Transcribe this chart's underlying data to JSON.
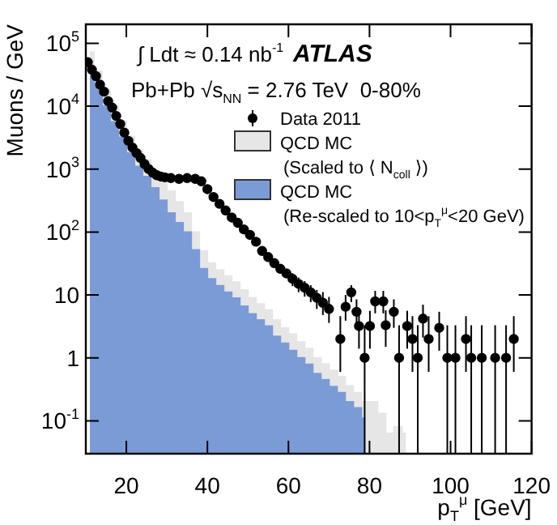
{
  "chart_data": {
    "type": "area",
    "xlabel": "p$_{T}$$^{μ}$ [GeV]",
    "ylabel": "Muons / GeV",
    "log": "y",
    "legend": "top right",
    "xlim": [
      10,
      120
    ],
    "xticks": [
      20,
      40,
      60,
      80,
      100,
      120
    ],
    "ylim": [
      0.03,
      200000
    ],
    "yticks": [
      {
        "value": 0.1,
        "label": "10$^{-1}$"
      },
      1,
      10,
      {
        "value": 100,
        "label": "10$^{2}$"
      },
      {
        "value": 1000,
        "label": "10$^{3}$"
      },
      {
        "value": 10000,
        "label": "10$^{4}$"
      },
      {
        "value": 100000,
        "label": "10$^{5}$"
      }
    ],
    "annotations": [
      "∫ Ldt ≈ 0.14 nb$^{-1}$",
      "ATLAS",
      "Pb+Pb √s$_{NN}$ = 2.76 TeV  0-80%"
    ],
    "series": [
      {
        "type": "scatter",
        "name": "Data 2011",
        "color": "#000000",
        "marker": "circle",
        "x": [
          10.5,
          11.5,
          12.5,
          13.5,
          14.5,
          15.5,
          16.5,
          17.5,
          18.5,
          19.5,
          20.5,
          21.5,
          22.5,
          23.5,
          24.5,
          25.5,
          26.5,
          27.5,
          28.5,
          29.5,
          31,
          33,
          35,
          37,
          38.5,
          40,
          41.5,
          43,
          44.5,
          46,
          47.5,
          49,
          50.5,
          52,
          53.5,
          55,
          56.5,
          58,
          59.5,
          61,
          62.5,
          64,
          65.5,
          67,
          68.5,
          70,
          72.8,
          74.1,
          75.5,
          76.8,
          77.4,
          78.8,
          80.1,
          81.4,
          83.4,
          84,
          86,
          87.3,
          89.3,
          90.6,
          91.9,
          93.2,
          94.6,
          97.2,
          99.2,
          101.2,
          103.8,
          105.1,
          107.7,
          111,
          113.7,
          115.6
        ],
        "values": [
          50000,
          38000,
          30000,
          22000,
          17000,
          12000,
          9500,
          7000,
          5200,
          3800,
          2800,
          2200,
          1800,
          1500,
          1200,
          1000,
          880,
          800,
          760,
          740,
          720,
          700,
          720,
          700,
          640,
          480,
          360,
          280,
          220,
          170,
          140,
          110,
          90,
          70,
          50,
          40,
          32,
          26,
          22,
          18,
          15,
          13,
          11,
          9,
          7.5,
          6,
          2,
          6.5,
          11,
          5.4,
          3.2,
          1,
          3.2,
          7.9,
          7.9,
          3.3,
          5.4,
          1,
          3.2,
          2,
          1,
          4.2,
          2,
          3,
          1,
          1,
          2,
          1,
          1,
          1,
          1,
          2
        ],
        "errors": [
          null,
          null,
          null,
          null,
          null,
          null,
          null,
          null,
          null,
          null,
          null,
          null,
          null,
          null,
          null,
          null,
          null,
          null,
          null,
          null,
          null,
          null,
          null,
          null,
          null,
          null,
          null,
          null,
          null,
          null,
          null,
          null,
          null,
          null,
          null,
          null,
          null,
          null,
          null,
          4.2,
          3.9,
          3.6,
          3.3,
          3,
          [
            4.8,
            11.1
          ],
          [
            3.6,
            9.3
          ],
          [
            0.6,
            4.6
          ],
          [
            3.9,
            10
          ],
          3.3,
          [
            3,
            8.5
          ],
          [
            1.4,
            5.6
          ],
          [
            0.03,
            3.3
          ],
          [
            1.4,
            5.6
          ],
          [
            5.1,
            11.6
          ],
          [
            5.1,
            11.6
          ],
          [
            1.5,
            5.7
          ],
          [
            3,
            8.5
          ],
          [
            0.03,
            3.3
          ],
          [
            1.4,
            5.6
          ],
          [
            0.6,
            4.6
          ],
          [
            0.03,
            3.3
          ],
          [
            2.1,
            7
          ],
          [
            0.6,
            4.6
          ],
          [
            1.3,
            5.4
          ],
          [
            0.03,
            3.3
          ],
          [
            0.03,
            3.3
          ],
          [
            0.6,
            4.6
          ],
          [
            0.03,
            3.3
          ],
          [
            0.03,
            3.3
          ],
          [
            0.03,
            3.3
          ],
          [
            0.03,
            3.3
          ],
          [
            0.6,
            4.6
          ]
        ]
      },
      {
        "type": "area",
        "name": "QCD MC\n(Scaled to ⟨ N$_{coll}$ ⟩)",
        "color": "#e6e6e6",
        "x": [
          11,
          13,
          15,
          17,
          19,
          21,
          23,
          25,
          27,
          29,
          31,
          33,
          35,
          37,
          39,
          41,
          43,
          45,
          47,
          49,
          51,
          53,
          55,
          57,
          59,
          61,
          63,
          65,
          67,
          69,
          71,
          73,
          75,
          77,
          79,
          81,
          83,
          85,
          87,
          89
        ],
        "values": [
          72000,
          36000,
          18000,
          10000,
          5800,
          3300,
          2000,
          1400,
          950,
          640,
          450,
          300,
          200,
          100,
          50,
          32,
          25,
          20,
          16,
          12,
          9,
          7.2,
          5.8,
          4,
          3,
          2.4,
          1.8,
          1.4,
          1.0,
          0.8,
          0.63,
          0.5,
          0.36,
          0.28,
          0.2,
          0.2,
          0.13,
          0.063,
          0.08,
          0.063
        ]
      },
      {
        "type": "area",
        "name": "QCD MC\n(Re-scaled to 10<p$_{T}$$^{μ}$<20 GeV)",
        "color": "#7b9bd6",
        "x": [
          11,
          13,
          15,
          17,
          19,
          21,
          23,
          25,
          27,
          29,
          31,
          33,
          35,
          37,
          39,
          41,
          43,
          45,
          47,
          49,
          51,
          53,
          55,
          57,
          59,
          61,
          63,
          65,
          67,
          69,
          71,
          73,
          75,
          77,
          79
        ],
        "values": [
          40000,
          20000,
          10000,
          5600,
          3200,
          1800,
          1100,
          760,
          500,
          320,
          200,
          140,
          100,
          52,
          26,
          18,
          14,
          11,
          8.9,
          6.6,
          5.0,
          4.0,
          3.2,
          2.2,
          1.7,
          1.3,
          1.0,
          0.79,
          0.56,
          0.45,
          0.35,
          0.28,
          0.2,
          0.16,
          0.11
        ]
      }
    ]
  }
}
